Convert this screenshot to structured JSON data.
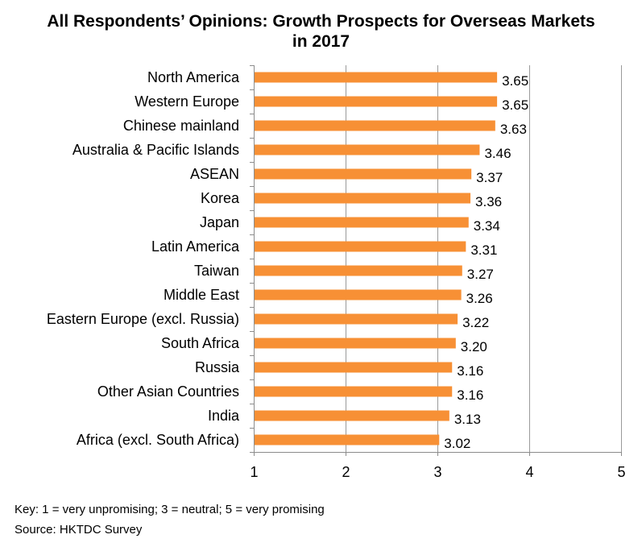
{
  "chart_data": {
    "type": "bar",
    "orientation": "horizontal",
    "title_line1": "All Respondents’ Opinions: Growth Prospects for Overseas Markets",
    "title_line2": "in 2017",
    "categories": [
      "North America",
      "Western Europe",
      "Chinese mainland",
      "Australia & Pacific Islands",
      "ASEAN",
      "Korea",
      "Japan",
      "Latin America",
      "Taiwan",
      "Middle East",
      "Eastern Europe (excl. Russia)",
      "South Africa",
      "Russia",
      "Other Asian Countries",
      "India",
      "Africa (excl. South Africa)"
    ],
    "values": [
      3.65,
      3.65,
      3.63,
      3.46,
      3.37,
      3.36,
      3.34,
      3.31,
      3.27,
      3.26,
      3.22,
      3.2,
      3.16,
      3.16,
      3.13,
      3.02
    ],
    "value_labels": [
      "3.65",
      "3.65",
      "3.63",
      "3.46",
      "3.37",
      "3.36",
      "3.34",
      "3.31",
      "3.27",
      "3.26",
      "3.22",
      "3.20",
      "3.16",
      "3.16",
      "3.13",
      "3.02"
    ],
    "xlim": [
      1,
      5
    ],
    "xticks": [
      "1",
      "2",
      "3",
      "4",
      "5"
    ],
    "bar_color": "#F79035",
    "gridlines": true
  },
  "footnotes": {
    "key": "Key: 1 = very unpromising; 3 = neutral; 5 = very promising",
    "source": "Source: HKTDC Survey"
  }
}
